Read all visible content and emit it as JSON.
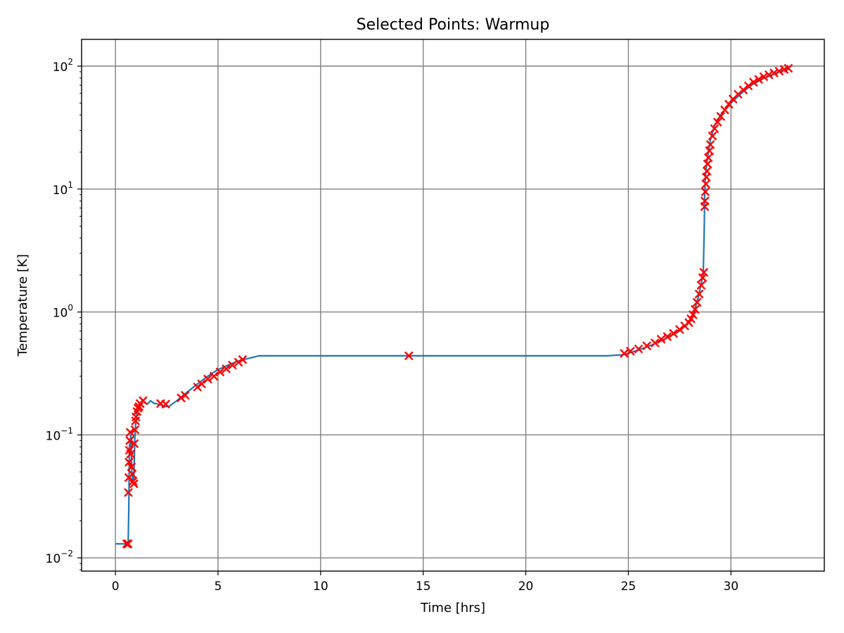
{
  "chart_data": {
    "type": "line",
    "title": "Selected Points: Warmup",
    "xlabel": "Time [hrs]",
    "ylabel": "Temperature [K]",
    "xlim": [
      -1.65,
      34.55
    ],
    "ylim": [
      0.0078,
      165
    ],
    "yscale": "log",
    "grid": true,
    "colors": {
      "line": "#1f77b4",
      "marker": "#ff0000",
      "grid": "#808080"
    },
    "xticks": [
      {
        "value": 0,
        "label": "0"
      },
      {
        "value": 5,
        "label": "5"
      },
      {
        "value": 10,
        "label": "10"
      },
      {
        "value": 15,
        "label": "15"
      },
      {
        "value": 20,
        "label": "20"
      },
      {
        "value": 25,
        "label": "25"
      },
      {
        "value": 30,
        "label": "30"
      }
    ],
    "yticks": [
      {
        "value": 0.01,
        "base": "10",
        "exp": "−2"
      },
      {
        "value": 0.1,
        "base": "10",
        "exp": "−1"
      },
      {
        "value": 1,
        "base": "10",
        "exp": "0"
      },
      {
        "value": 10,
        "base": "10",
        "exp": "1"
      },
      {
        "value": 100,
        "base": "10",
        "exp": "2"
      }
    ],
    "series": [
      {
        "type": "line",
        "x": [
          0,
          0.58,
          0.62,
          0.65,
          0.68,
          0.75,
          0.8,
          0.85,
          0.9,
          0.95,
          1.0,
          1.05,
          1.1,
          1.2,
          1.3,
          1.4,
          1.5,
          1.6,
          1.7,
          1.8,
          1.9,
          2.0,
          2.2,
          2.4,
          2.6,
          2.8,
          3.0,
          3.3,
          3.6,
          4.0,
          4.5,
          5.0,
          5.5,
          6.0,
          6.5,
          7.0,
          8,
          10,
          12,
          14.3,
          16,
          18,
          20,
          22,
          24,
          24.8,
          25.5,
          26.5,
          27.5,
          28.0,
          28.2,
          28.4,
          28.55,
          28.65,
          28.7,
          28.72,
          28.75,
          28.8,
          28.9,
          29.0,
          29.2,
          29.5,
          30.0,
          30.5,
          31.0,
          31.5,
          32.0,
          32.5,
          32.8
        ],
        "y": [
          0.013,
          0.013,
          0.013,
          0.025,
          0.08,
          0.1,
          0.05,
          0.042,
          0.045,
          0.1,
          0.13,
          0.15,
          0.16,
          0.18,
          0.19,
          0.185,
          0.18,
          0.18,
          0.19,
          0.185,
          0.18,
          0.18,
          0.175,
          0.17,
          0.17,
          0.18,
          0.19,
          0.21,
          0.23,
          0.26,
          0.3,
          0.34,
          0.37,
          0.4,
          0.42,
          0.44,
          0.44,
          0.44,
          0.44,
          0.44,
          0.44,
          0.44,
          0.44,
          0.44,
          0.44,
          0.45,
          0.49,
          0.57,
          0.7,
          0.85,
          1.0,
          1.3,
          1.7,
          2.0,
          5,
          9,
          12,
          15,
          20,
          25,
          33,
          40,
          50,
          60,
          70,
          78,
          85,
          92,
          96
        ]
      },
      {
        "type": "scatter",
        "marker": "x",
        "x": [
          0.55,
          0.6,
          0.62,
          0.63,
          0.65,
          0.66,
          0.68,
          0.7,
          0.72,
          0.74,
          0.78,
          0.82,
          0.86,
          0.9,
          0.92,
          0.95,
          0.98,
          1.0,
          1.05,
          1.1,
          1.15,
          1.2,
          1.35,
          2.2,
          2.45,
          3.2,
          3.4,
          4.0,
          4.2,
          4.5,
          4.8,
          5.1,
          5.4,
          5.7,
          6.0,
          6.2,
          14.3,
          24.8,
          25.1,
          25.5,
          25.9,
          26.3,
          26.6,
          26.9,
          27.2,
          27.5,
          27.75,
          27.95,
          28.05,
          28.15,
          28.25,
          28.35,
          28.45,
          28.55,
          28.62,
          28.68,
          28.72,
          28.73,
          28.75,
          28.78,
          28.8,
          28.83,
          28.86,
          28.9,
          28.95,
          29.0,
          29.1,
          29.2,
          29.35,
          29.5,
          29.7,
          29.9,
          30.1,
          30.35,
          30.6,
          30.85,
          31.1,
          31.35,
          31.6,
          31.85,
          32.1,
          32.35,
          32.6,
          32.8
        ],
        "y": [
          0.013,
          0.013,
          0.013,
          0.034,
          0.045,
          0.06,
          0.075,
          0.09,
          0.105,
          0.07,
          0.055,
          0.048,
          0.042,
          0.04,
          0.085,
          0.11,
          0.13,
          0.14,
          0.155,
          0.165,
          0.17,
          0.18,
          0.19,
          0.18,
          0.178,
          0.2,
          0.21,
          0.245,
          0.26,
          0.285,
          0.3,
          0.325,
          0.345,
          0.37,
          0.39,
          0.41,
          0.44,
          0.46,
          0.48,
          0.5,
          0.53,
          0.56,
          0.6,
          0.63,
          0.67,
          0.72,
          0.77,
          0.82,
          0.88,
          0.95,
          1.05,
          1.2,
          1.4,
          1.65,
          1.9,
          2.1,
          7.2,
          8.0,
          9.5,
          11,
          12.5,
          14,
          16,
          18,
          20.5,
          23,
          27,
          31,
          35,
          39,
          44,
          49,
          54,
          59,
          64,
          69,
          74,
          78,
          82,
          85,
          88,
          91,
          94,
          96
        ]
      }
    ]
  }
}
